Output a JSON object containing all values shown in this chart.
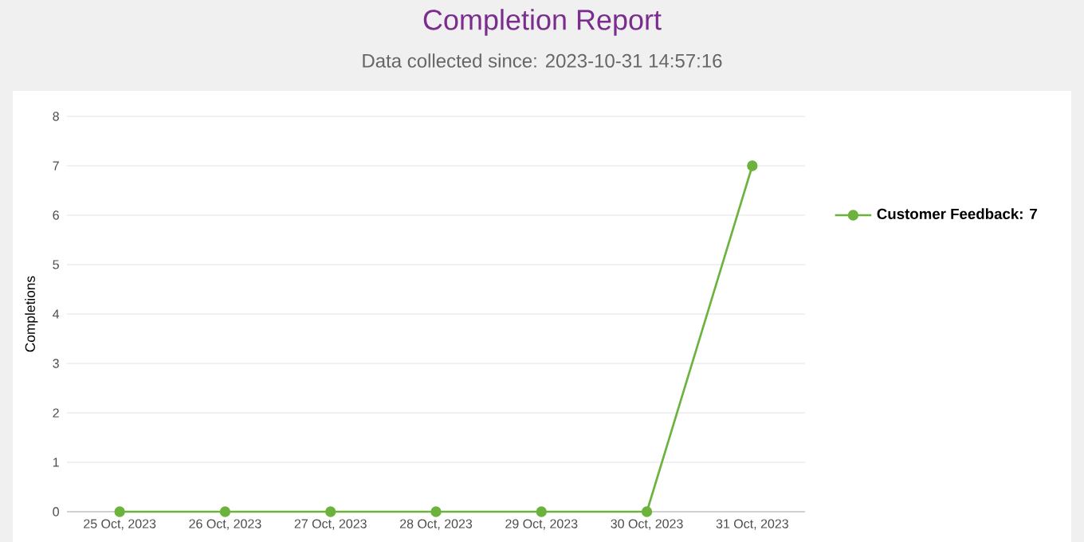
{
  "chart_data": {
    "type": "line",
    "title": "Completion Report",
    "subtitle": "Data collected since: 2023-10-31 14:57:16",
    "ylabel": "Completions",
    "categories": [
      "25 Oct, 2023",
      "26 Oct, 2023",
      "27 Oct, 2023",
      "28 Oct, 2023",
      "29 Oct, 2023",
      "30 Oct, 2023",
      "31 Oct, 2023"
    ],
    "series": [
      {
        "name": "Customer Feedback: 7",
        "color": "#6cb33e",
        "values": [
          0,
          0,
          0,
          0,
          0,
          0,
          7
        ]
      }
    ],
    "ylim": [
      0,
      8
    ],
    "yticks": [
      0,
      1,
      2,
      3,
      4,
      5,
      6,
      7,
      8
    ],
    "grid": "y",
    "legend": "right",
    "marker": "circle",
    "line_style": "solid"
  }
}
